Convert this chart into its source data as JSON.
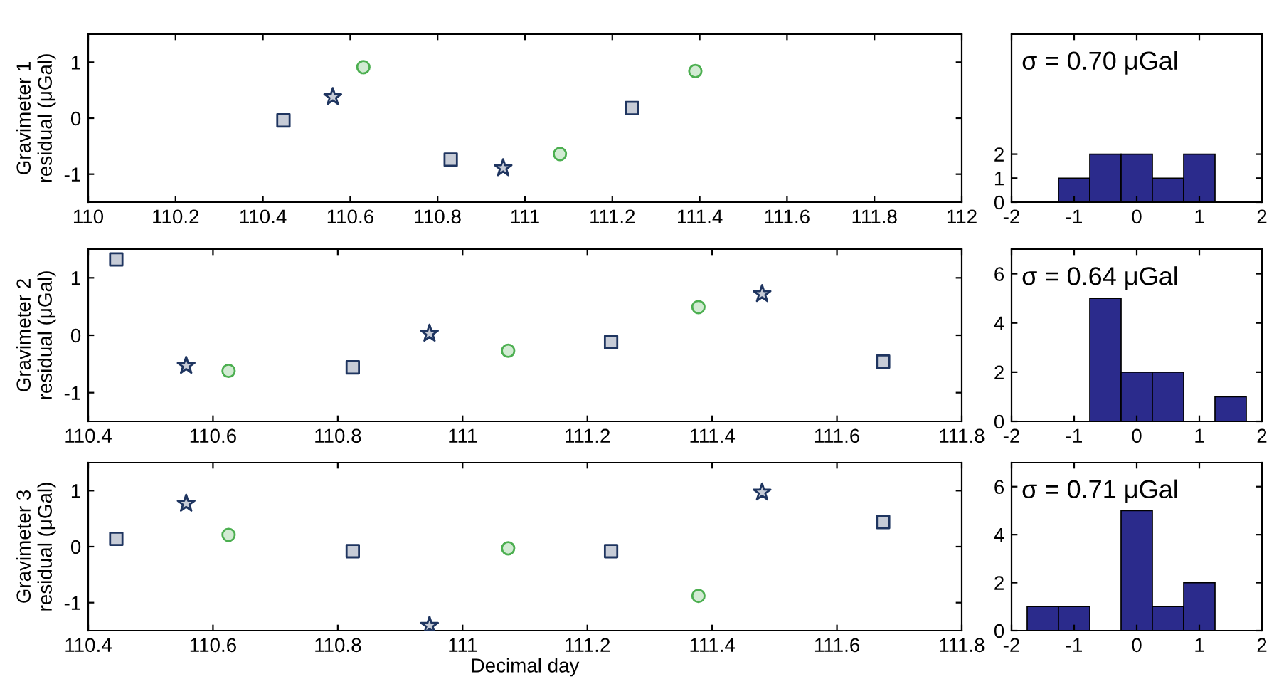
{
  "chart_data": [
    {
      "type": "scatter",
      "ylabel": "Gravimeter 1\nresidual (μGal)",
      "xlim": [
        110,
        112
      ],
      "xticks": [
        110,
        110.2,
        110.4,
        110.6,
        110.8,
        111,
        111.2,
        111.4,
        111.6,
        111.8,
        112
      ],
      "ylim": [
        -1.5,
        1.5
      ],
      "yticks": [
        -1,
        0,
        1
      ],
      "grid": false,
      "legend": false,
      "series": [
        {
          "color": "#1f3560",
          "marker": "square",
          "x": [
            110.447,
            110.83,
            111.245
          ],
          "values": [
            -0.04,
            -0.74,
            0.18
          ]
        },
        {
          "color": "#1f3560",
          "marker": "star",
          "x": [
            110.56,
            110.95
          ],
          "values": [
            0.38,
            -0.89
          ]
        },
        {
          "color": "#4caf50",
          "marker": "circle",
          "x": [
            110.63,
            111.08,
            111.39
          ],
          "values": [
            0.91,
            -0.64,
            0.84
          ]
        }
      ]
    },
    {
      "type": "histogram",
      "bins": [
        -1.75,
        -1.25,
        -0.75,
        -0.25,
        0.25,
        0.75,
        1.25,
        1.75
      ],
      "values": [
        0,
        1,
        2,
        2,
        1,
        2,
        0
      ],
      "color": "#2b2b8c",
      "xlim": [
        -2,
        2
      ],
      "xticks": [
        -2,
        -1,
        0,
        1,
        2
      ],
      "ylim": [
        0,
        7
      ],
      "yticks": [
        0,
        1,
        2
      ],
      "annotations": [
        "σ = 0.70 μGal"
      ]
    },
    {
      "type": "scatter",
      "ylabel": "Gravimeter 2\nresidual (μGal)",
      "xlim": [
        110.4,
        111.8
      ],
      "xticks": [
        110.4,
        110.6,
        110.8,
        111,
        111.2,
        111.4,
        111.6,
        111.8
      ],
      "ylim": [
        -1.5,
        1.5
      ],
      "yticks": [
        -1,
        0,
        1
      ],
      "grid": false,
      "legend": false,
      "series": [
        {
          "color": "#1f3560",
          "marker": "square",
          "x": [
            110.445,
            110.824,
            111.238,
            111.674
          ],
          "values": [
            1.32,
            -0.56,
            -0.12,
            -0.46
          ]
        },
        {
          "color": "#1f3560",
          "marker": "star",
          "x": [
            110.557,
            110.947,
            111.48
          ],
          "values": [
            -0.53,
            0.03,
            0.72
          ]
        },
        {
          "color": "#4caf50",
          "marker": "circle",
          "x": [
            110.625,
            111.073,
            111.378
          ],
          "values": [
            -0.62,
            -0.27,
            0.49
          ]
        }
      ]
    },
    {
      "type": "histogram",
      "bins": [
        -1.75,
        -1.25,
        -0.75,
        -0.25,
        0.25,
        0.75,
        1.25,
        1.75
      ],
      "values": [
        0,
        0,
        5,
        2,
        2,
        0,
        1
      ],
      "color": "#2b2b8c",
      "xlim": [
        -2,
        2
      ],
      "xticks": [
        -2,
        -1,
        0,
        1,
        2
      ],
      "ylim": [
        0,
        7
      ],
      "yticks": [
        0,
        2,
        4,
        6
      ],
      "annotations": [
        "σ = 0.64 μGal"
      ]
    },
    {
      "type": "scatter",
      "ylabel": "Gravimeter 3\nresidual (μGal)",
      "xlabel": "Decimal day",
      "xlim": [
        110.4,
        111.8
      ],
      "xticks": [
        110.4,
        110.6,
        110.8,
        111,
        111.2,
        111.4,
        111.6,
        111.8
      ],
      "ylim": [
        -1.5,
        1.5
      ],
      "yticks": [
        -1,
        0,
        1
      ],
      "grid": false,
      "legend": false,
      "series": [
        {
          "color": "#1f3560",
          "marker": "square",
          "x": [
            110.445,
            110.824,
            111.238,
            111.674
          ],
          "values": [
            0.14,
            -0.08,
            -0.08,
            0.44
          ]
        },
        {
          "color": "#1f3560",
          "marker": "star",
          "x": [
            110.557,
            110.947,
            111.48
          ],
          "values": [
            0.77,
            -1.41,
            0.97
          ]
        },
        {
          "color": "#4caf50",
          "marker": "circle",
          "x": [
            110.625,
            111.073,
            111.378
          ],
          "values": [
            0.21,
            -0.03,
            -0.88
          ]
        }
      ]
    },
    {
      "type": "histogram",
      "bins": [
        -1.75,
        -1.25,
        -0.75,
        -0.25,
        0.25,
        0.75,
        1.25,
        1.75
      ],
      "values": [
        1,
        1,
        0,
        5,
        1,
        2,
        0
      ],
      "color": "#2b2b8c",
      "xlim": [
        -2,
        2
      ],
      "xticks": [
        -2,
        -1,
        0,
        1,
        2
      ],
      "ylim": [
        0,
        7
      ],
      "yticks": [
        0,
        2,
        4,
        6
      ],
      "annotations": [
        "σ = 0.71 μGal"
      ]
    }
  ]
}
